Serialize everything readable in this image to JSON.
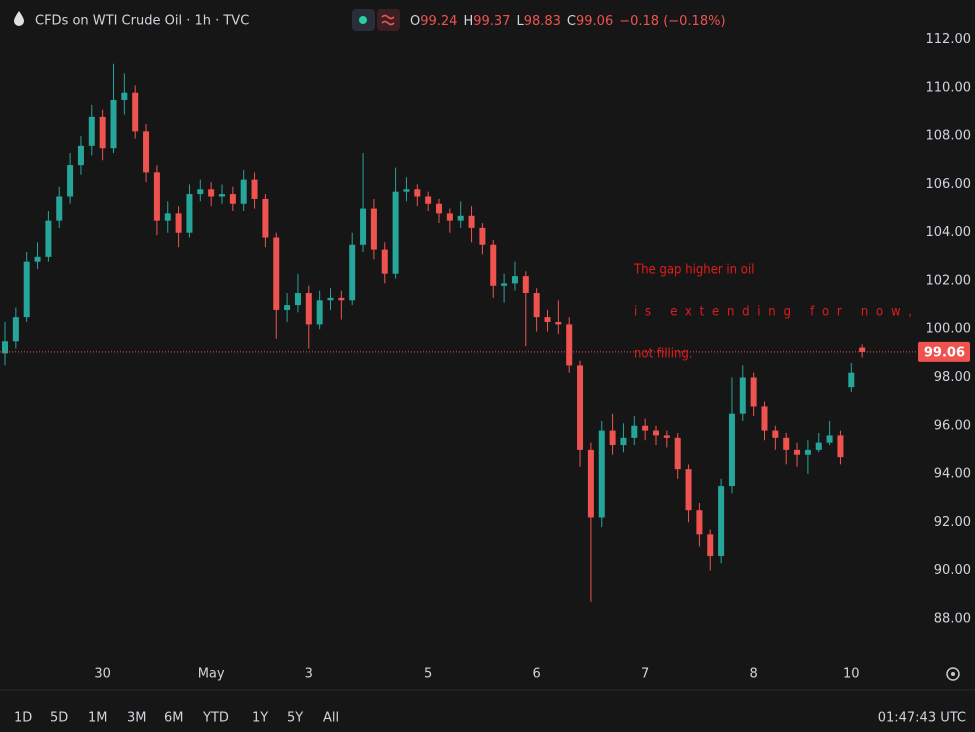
{
  "chart_data": {
    "type": "candlestick",
    "title": "CFDs on WTI Crude Oil · 1h · TVC",
    "ohlc_labels": [
      "O",
      "H",
      "L",
      "C"
    ],
    "change": "−0.18 (−0.18%)",
    "up_color": "#26a69a",
    "down_color": "#ef5350",
    "categories": [
      null,
      null,
      null,
      null,
      null,
      null,
      null,
      null,
      null,
      "30",
      null,
      null,
      null,
      null,
      null,
      null,
      null,
      null,
      null,
      "May",
      null,
      null,
      null,
      null,
      null,
      null,
      null,
      null,
      "3",
      null,
      null,
      null,
      null,
      null,
      null,
      null,
      null,
      null,
      null,
      "5",
      null,
      null,
      null,
      null,
      null,
      null,
      null,
      null,
      null,
      "6",
      null,
      null,
      null,
      null,
      null,
      null,
      null,
      null,
      null,
      "7",
      null,
      null,
      null,
      null,
      null,
      null,
      null,
      null,
      null,
      "8",
      null,
      null,
      null,
      null,
      null,
      null,
      null,
      null,
      "10",
      null
    ],
    "open": [
      99.0,
      99.5,
      100.5,
      102.8,
      103,
      104.5,
      105.5,
      106.8,
      107.6,
      108.8,
      107.5,
      109.5,
      109.8,
      108.2,
      106.5,
      104.5,
      104.8,
      104,
      105.6,
      105.8,
      105.5,
      105.6,
      105.2,
      106.2,
      105.4,
      103.8,
      100.8,
      101,
      101.5,
      100.2,
      101.2,
      101.3,
      101.2,
      103.5,
      105,
      103.3,
      102.3,
      105.7,
      105.8,
      105.5,
      105.2,
      104.8,
      104.5,
      104.7,
      104.2,
      103.5,
      101.8,
      101.9,
      102.2,
      101.5,
      100.5,
      100.3,
      100.2,
      98.5,
      95,
      92.2,
      95.8,
      95.2,
      95.5,
      96,
      95.8,
      95.6,
      95.5,
      94.2,
      92.5,
      91.5,
      90.6,
      93.5,
      96.5,
      98,
      96.8,
      95.8,
      95.5,
      95,
      94.8,
      95,
      95.3,
      95.6,
      97.6,
      99.24
    ],
    "high": [
      100.3,
      100.9,
      103.2,
      103.6,
      104.9,
      105.9,
      107.3,
      108.0,
      109.3,
      109.1,
      111.0,
      110.6,
      110.1,
      108.5,
      106.8,
      105.3,
      105.1,
      106.0,
      106.2,
      106.1,
      106.0,
      105.9,
      106.6,
      106.5,
      105.6,
      104.0,
      101.5,
      102.3,
      101.8,
      101.6,
      101.7,
      101.6,
      104.0,
      107.3,
      105.4,
      103.6,
      106.7,
      106.3,
      106.0,
      105.7,
      105.4,
      105.0,
      105.3,
      105.1,
      104.4,
      103.7,
      102.3,
      102.8,
      102.4,
      101.7,
      100.8,
      101.2,
      100.5,
      98.7,
      95.3,
      96.2,
      96.5,
      96.1,
      96.4,
      96.3,
      96.0,
      95.8,
      95.7,
      94.4,
      92.8,
      91.7,
      93.8,
      98.0,
      98.5,
      98.2,
      97.0,
      96.0,
      95.7,
      95.3,
      95.4,
      95.7,
      96.2,
      95.8,
      98.6,
      99.37
    ],
    "low": [
      98.5,
      99.2,
      100.3,
      102.5,
      102.8,
      104.2,
      105.2,
      106.4,
      107.2,
      107.0,
      107.3,
      108.9,
      107.9,
      106.1,
      103.9,
      104.0,
      103.4,
      103.8,
      105.3,
      105.1,
      105.2,
      104.9,
      104.9,
      105.0,
      103.4,
      99.6,
      100.3,
      100.7,
      99.2,
      100.0,
      100.8,
      100.4,
      101.0,
      103.2,
      102.9,
      101.9,
      102.1,
      105.3,
      105.1,
      104.9,
      104.4,
      104.0,
      104.2,
      103.6,
      103.1,
      101.3,
      101.1,
      101.6,
      99.3,
      99.9,
      99.9,
      99.8,
      98.2,
      94.3,
      88.7,
      91.8,
      94.8,
      94.9,
      95.2,
      95.4,
      95.2,
      95.1,
      93.8,
      92.0,
      91.0,
      90.0,
      90.3,
      93.2,
      96.2,
      96.4,
      95.4,
      95.0,
      94.4,
      94.3,
      94.0,
      94.9,
      95.2,
      94.4,
      97.4,
      98.83
    ],
    "close": [
      99.5,
      100.5,
      102.8,
      103,
      104.5,
      105.5,
      106.8,
      107.6,
      108.8,
      107.5,
      109.5,
      109.8,
      108.2,
      106.5,
      104.5,
      104.8,
      104,
      105.6,
      105.8,
      105.5,
      105.6,
      105.2,
      106.2,
      105.4,
      103.8,
      100.8,
      101,
      101.5,
      100.2,
      101.2,
      101.3,
      101.2,
      103.5,
      105,
      103.3,
      102.3,
      105.7,
      105.8,
      105.5,
      105.2,
      104.8,
      104.5,
      104.7,
      104.2,
      103.5,
      101.8,
      101.9,
      102.2,
      101.5,
      100.5,
      100.3,
      100.2,
      98.5,
      95,
      92.2,
      95.8,
      95.2,
      95.5,
      96,
      95.8,
      95.6,
      95.5,
      94.2,
      92.5,
      91.5,
      90.6,
      93.5,
      96.5,
      98,
      96.8,
      95.8,
      95.5,
      95,
      94.8,
      95,
      95.3,
      95.6,
      94.7,
      98.2,
      99.06
    ],
    "ylim": [
      86.5,
      112.4
    ],
    "yticks": [
      {
        "value": 88,
        "label": "88.00"
      },
      {
        "value": 90,
        "label": "90.00"
      },
      {
        "value": 92,
        "label": "92.00"
      },
      {
        "value": 94,
        "label": "94.00"
      },
      {
        "value": 96,
        "label": "96.00"
      },
      {
        "value": 98,
        "label": "98.00"
      },
      {
        "value": 100,
        "label": "100.00"
      },
      {
        "value": 102,
        "label": "102.00"
      },
      {
        "value": 104,
        "label": "104.00"
      },
      {
        "value": 106,
        "label": "106.00"
      },
      {
        "value": 108,
        "label": "108.00"
      },
      {
        "value": 110,
        "label": "110.00"
      },
      {
        "value": 112,
        "label": "112.00"
      }
    ],
    "grid": false,
    "annotations": [
      "The gap higher in oil",
      "is extending for now,",
      "not filling."
    ],
    "annotation_color": "#e31b1b",
    "timeframes": [
      "1D",
      "5D",
      "1M",
      "3M",
      "6M",
      "YTD",
      "1Y",
      "5Y",
      "All"
    ],
    "clock": "01:47:43 UTC"
  }
}
